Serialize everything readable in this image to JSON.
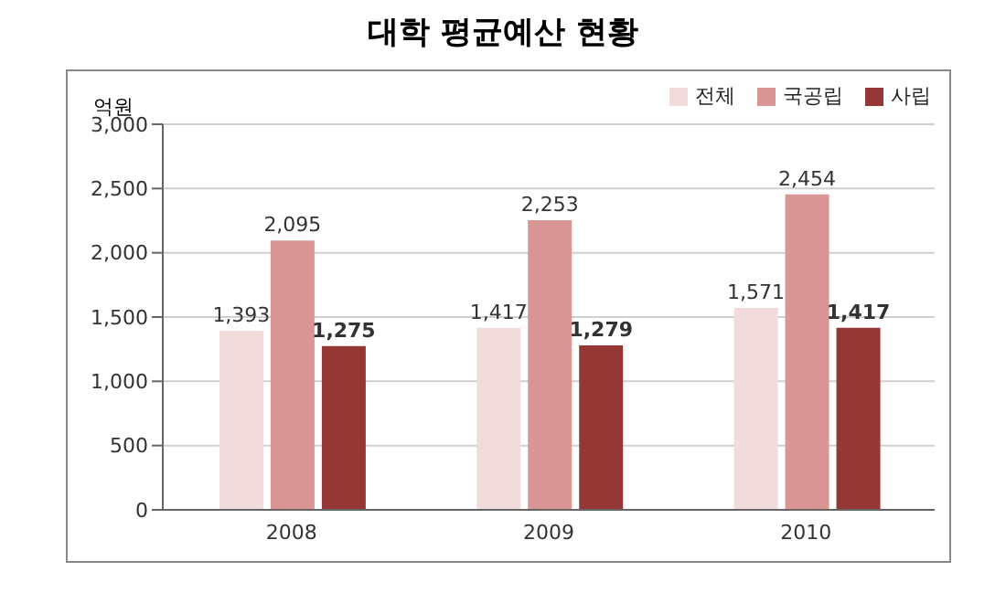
{
  "chart_data": {
    "type": "bar",
    "title": "대학 평균예산 현황",
    "ylabel": "억원",
    "categories": [
      "2008",
      "2009",
      "2010"
    ],
    "series": [
      {
        "name": "전체",
        "color": "#f2dcdb",
        "values": [
          1393,
          1417,
          1571
        ],
        "value_labels": [
          "1,393",
          "1,417",
          "1,571"
        ]
      },
      {
        "name": "국공립",
        "color": "#d99694",
        "values": [
          2095,
          2253,
          2454
        ],
        "value_labels": [
          "2,095",
          "2,253",
          "2,454"
        ]
      },
      {
        "name": "사립",
        "color": "#953735",
        "values": [
          1275,
          1279,
          1417
        ],
        "value_labels": [
          "1,275",
          "1,279",
          "1,417"
        ]
      }
    ],
    "ylim": [
      0,
      3000
    ],
    "yticks": [
      0,
      500,
      {
        "value": 1000,
        "label": "1,000"
      },
      {
        "value": 1500,
        "label": "1,500"
      },
      {
        "value": 2000,
        "label": "2,000"
      },
      {
        "value": 2500,
        "label": "2,500"
      },
      {
        "value": 3000,
        "label": "3,000"
      }
    ],
    "grid": "y",
    "legend": "top right"
  }
}
